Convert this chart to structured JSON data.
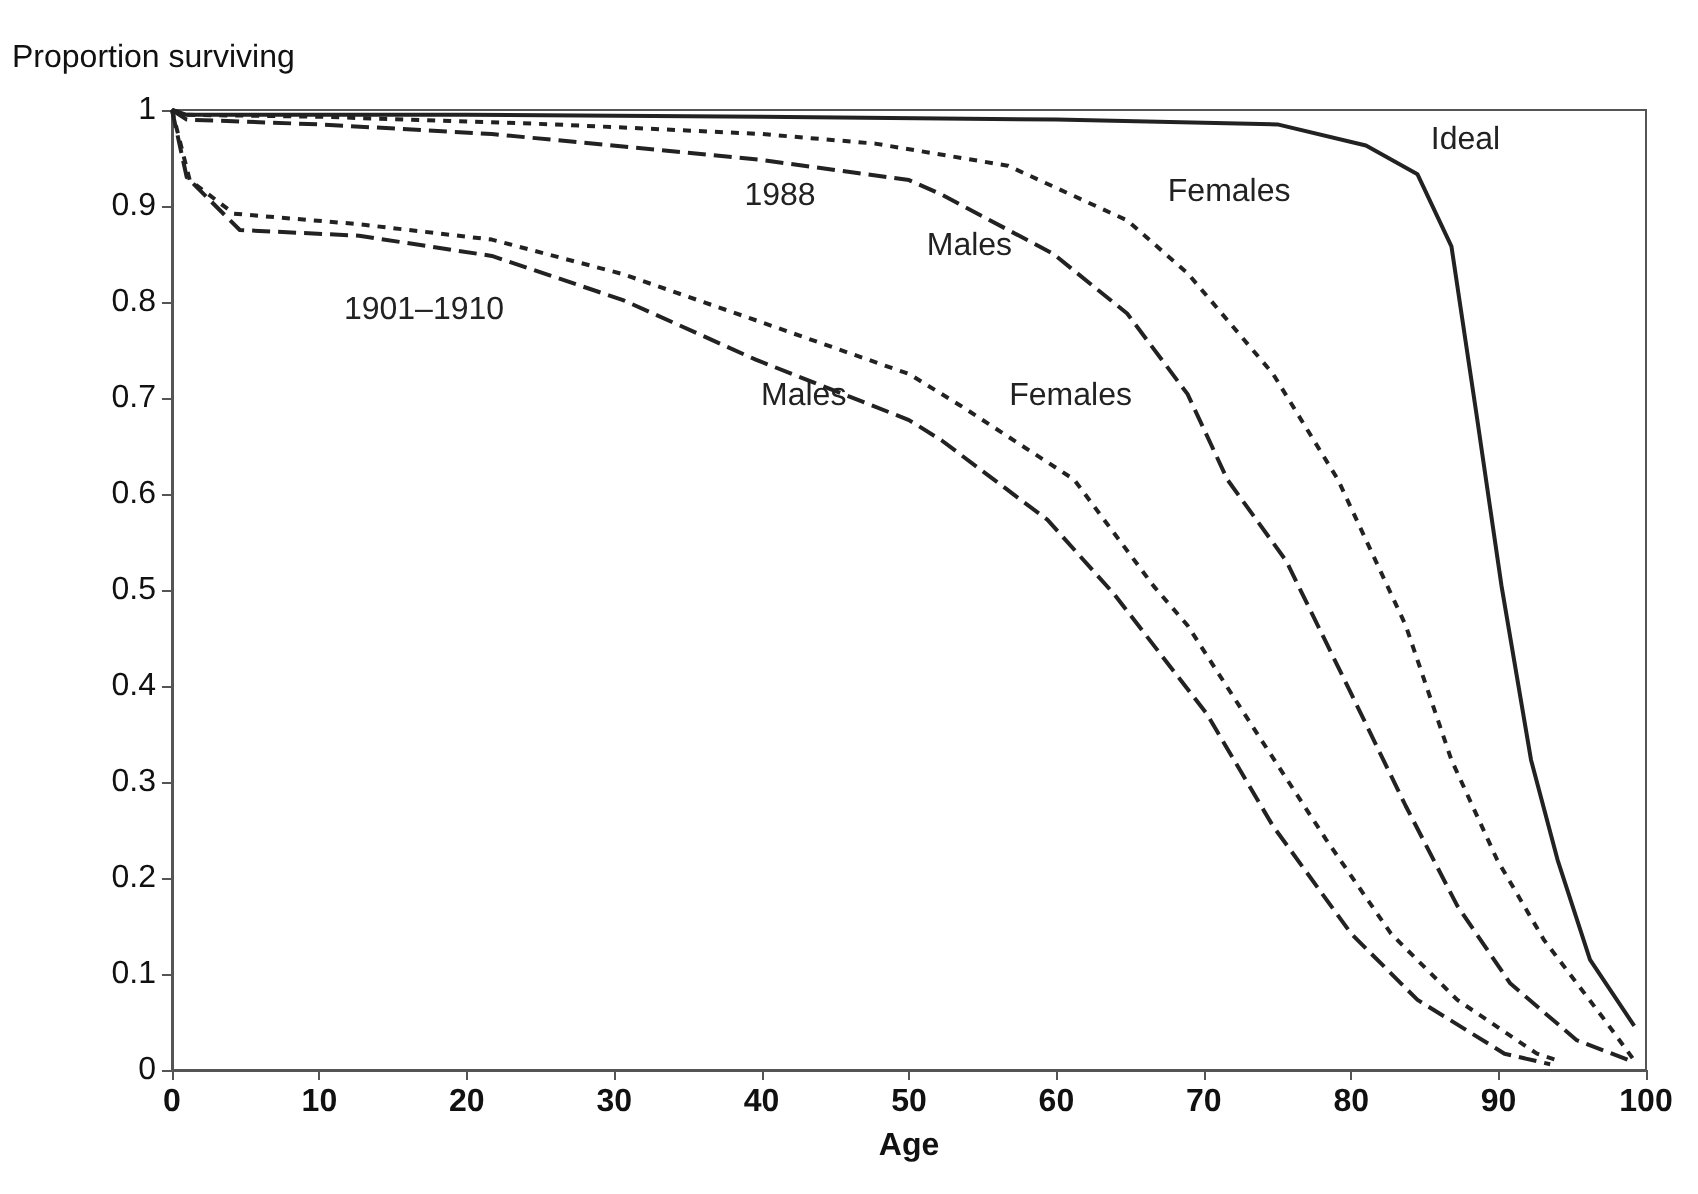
{
  "chart_data": {
    "type": "line",
    "xlabel": "Age",
    "ylabel": "Proportion surviving",
    "xlim": [
      0,
      100
    ],
    "ylim": [
      0,
      1
    ],
    "xticks": [
      0,
      10,
      20,
      30,
      40,
      50,
      60,
      70,
      80,
      90,
      100
    ],
    "yticks": [
      0,
      0.1,
      0.2,
      0.3,
      0.4,
      0.5,
      0.6,
      0.7,
      0.8,
      0.9,
      1
    ],
    "grid": false,
    "legend": false,
    "marker": "none",
    "series": [
      {
        "name": "Ideal",
        "color": "#222222",
        "line_style": "solid",
        "x": [
          0,
          1,
          20,
          40,
          60,
          75,
          81,
          84.5,
          86.8,
          88.5,
          90.2,
          92.2,
          94,
          96.2,
          99.2
        ],
        "values": [
          1,
          0.995,
          0.995,
          0.993,
          0.99,
          0.985,
          0.963,
          0.933,
          0.858,
          0.683,
          0.504,
          0.323,
          0.219,
          0.115,
          0.046
        ]
      },
      {
        "name": "Females",
        "color": "#222222",
        "line_style": "dotted",
        "x": [
          0,
          1,
          10,
          26,
          40,
          47.7,
          56.7,
          64.8,
          68.9,
          74.7,
          79.1,
          83.7,
          86.8,
          89.9,
          93.1,
          97.2,
          99.2
        ],
        "values": [
          1,
          0.995,
          0.993,
          0.985,
          0.975,
          0.965,
          0.942,
          0.885,
          0.83,
          0.725,
          0.615,
          0.463,
          0.323,
          0.219,
          0.135,
          0.052,
          0.01
        ]
      },
      {
        "name": "Males",
        "color": "#222222",
        "line_style": "dashed",
        "x": [
          0,
          1,
          10,
          21.7,
          30.6,
          40,
          50,
          52.2,
          59.8,
          64.8,
          68.9,
          71.6,
          75.6,
          80,
          83.7,
          87.2,
          90.8,
          95.3,
          98.9
        ],
        "values": [
          1,
          0.99,
          0.985,
          0.975,
          0.962,
          0.948,
          0.927,
          0.912,
          0.85,
          0.788,
          0.704,
          0.615,
          0.53,
          0.392,
          0.275,
          0.171,
          0.09,
          0.031,
          0.01
        ]
      },
      {
        "name": "Females",
        "color": "#222222",
        "line_style": "dotted",
        "x": [
          0,
          1.2,
          4.2,
          12.7,
          21.7,
          30.6,
          39.6,
          50,
          53.5,
          61.2,
          66.6,
          68.9,
          73.3,
          78.3,
          82.7,
          87.2,
          92.6,
          94
        ],
        "values": [
          1,
          0.927,
          0.892,
          0.881,
          0.865,
          0.829,
          0.781,
          0.725,
          0.692,
          0.615,
          0.504,
          0.463,
          0.358,
          0.24,
          0.142,
          0.073,
          0.017,
          0.01
        ]
      },
      {
        "name": "Males",
        "color": "#222222",
        "line_style": "dashed",
        "x": [
          0,
          1,
          4.6,
          12.7,
          21.7,
          30.6,
          39.6,
          50,
          52.2,
          59.4,
          63.9,
          70.2,
          74.7,
          80,
          84.5,
          90.4,
          93.5
        ],
        "values": [
          1,
          0.93,
          0.875,
          0.869,
          0.848,
          0.802,
          0.74,
          0.677,
          0.656,
          0.573,
          0.496,
          0.371,
          0.254,
          0.142,
          0.073,
          0.017,
          0.006
        ]
      }
    ],
    "annotations": [
      "1988",
      "1901–1910"
    ]
  }
}
